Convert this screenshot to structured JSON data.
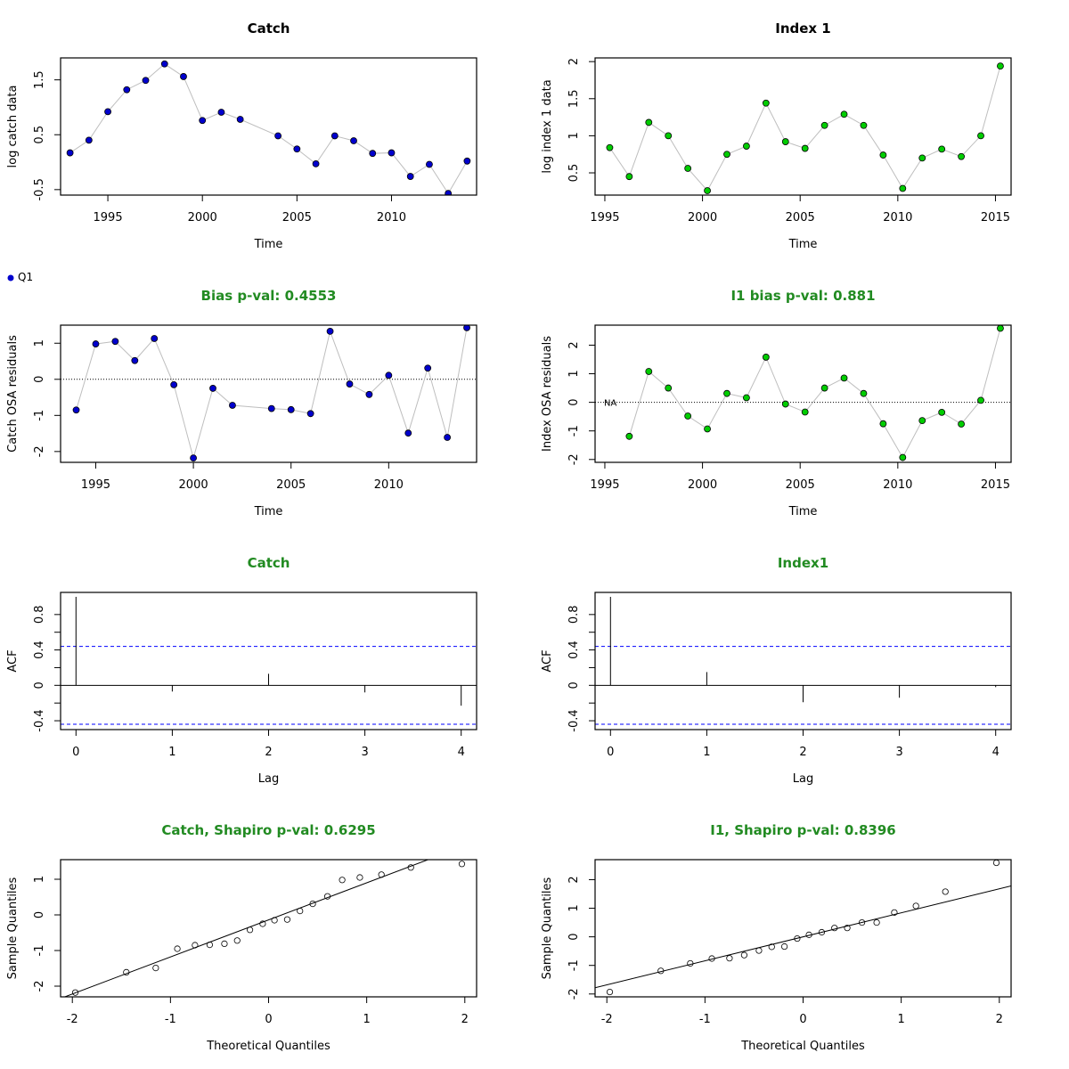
{
  "colors": {
    "title_default": "#000000",
    "title_green": "#228B22",
    "catch_point": "#0000CD",
    "index_point": "#00CD00",
    "connector_line": "#BEBEBE",
    "acf_ci": "#0000FF"
  },
  "legend": {
    "label": "Q1",
    "marker_color": "#0000CD"
  },
  "chart_data": [
    {
      "type": "line",
      "title": "Catch",
      "title_color": "#000000",
      "xlabel": "Time",
      "ylabel": "log catch data",
      "xlim": [
        1992.5,
        2014.5
      ],
      "ylim": [
        -0.6,
        1.9
      ],
      "xticks": [
        1995,
        2000,
        2005,
        2010
      ],
      "yticks": [
        -0.5,
        0.5,
        1.5
      ],
      "point_color": "#0000CD",
      "connect": true,
      "x": [
        1993,
        1994,
        1995,
        1996,
        1997,
        1998,
        1999,
        2000,
        2001,
        2002,
        2004,
        2005,
        2006,
        2007,
        2008,
        2009,
        2010,
        2011,
        2012,
        2013,
        2014
      ],
      "y": [
        0.17,
        0.4,
        0.92,
        1.32,
        1.49,
        1.79,
        1.56,
        0.76,
        0.91,
        0.78,
        0.48,
        0.24,
        -0.03,
        0.48,
        0.39,
        0.16,
        0.17,
        -0.26,
        -0.04,
        -0.57,
        0.02
      ]
    },
    {
      "type": "line",
      "title": "Index 1",
      "title_color": "#000000",
      "xlabel": "Time",
      "ylabel": "log index 1 data",
      "xlim": [
        1994.5,
        2015.8
      ],
      "ylim": [
        0.2,
        2.05
      ],
      "xticks": [
        1995,
        2000,
        2005,
        2010,
        2015
      ],
      "yticks": [
        0.5,
        1.0,
        1.5,
        2.0
      ],
      "point_color": "#00CD00",
      "connect": true,
      "x": [
        1995.25,
        1996.25,
        1997.25,
        1998.25,
        1999.25,
        2000.25,
        2001.25,
        2002.25,
        2003.25,
        2004.25,
        2005.25,
        2006.25,
        2007.25,
        2008.25,
        2009.25,
        2010.25,
        2011.25,
        2012.25,
        2013.25,
        2014.25,
        2015.25
      ],
      "y": [
        0.84,
        0.45,
        1.18,
        1.0,
        0.56,
        0.26,
        0.75,
        0.86,
        1.44,
        0.92,
        0.83,
        1.14,
        1.29,
        1.14,
        0.74,
        0.29,
        0.7,
        0.82,
        0.72,
        1.0,
        1.94
      ]
    },
    {
      "type": "line",
      "title": "Bias p-val: 0.4553",
      "title_color": "#228B22",
      "xlabel": "Time",
      "ylabel": "Catch OSA residuals",
      "xlim": [
        1993.2,
        2014.5
      ],
      "ylim": [
        -2.3,
        1.5
      ],
      "xticks": [
        1995,
        2000,
        2005,
        2010
      ],
      "yticks": [
        -2,
        -1,
        0,
        1
      ],
      "point_color": "#0000CD",
      "connect": true,
      "zero_line": true,
      "x": [
        1994,
        1995,
        1996,
        1997,
        1998,
        1999,
        2000,
        2001,
        2002,
        2004,
        2005,
        2006,
        2007,
        2008,
        2009,
        2010,
        2011,
        2012,
        2013,
        2014
      ],
      "y": [
        -0.85,
        0.98,
        1.05,
        0.52,
        1.13,
        -0.15,
        -2.18,
        -0.25,
        -0.72,
        -0.81,
        -0.84,
        -0.95,
        1.33,
        -0.13,
        -0.42,
        0.11,
        -1.49,
        0.31,
        -1.61,
        1.43
      ]
    },
    {
      "type": "line",
      "title": "I1 bias p-val: 0.881",
      "title_color": "#228B22",
      "xlabel": "Time",
      "ylabel": "Index OSA residuals",
      "xlim": [
        1994.5,
        2015.8
      ],
      "ylim": [
        -2.1,
        2.7
      ],
      "xticks": [
        1995,
        2000,
        2005,
        2010,
        2015
      ],
      "yticks": [
        -2,
        -1,
        0,
        1,
        2
      ],
      "point_color": "#00CD00",
      "connect": true,
      "zero_line": true,
      "na_label": "NA",
      "x": [
        1996.25,
        1997.25,
        1998.25,
        1999.25,
        2000.25,
        2001.25,
        2002.25,
        2003.25,
        2004.25,
        2005.25,
        2006.25,
        2007.25,
        2008.25,
        2009.25,
        2010.25,
        2011.25,
        2012.25,
        2013.25,
        2014.25,
        2015.25
      ],
      "y": [
        -1.19,
        1.08,
        0.5,
        -0.48,
        -0.93,
        0.31,
        0.16,
        1.58,
        -0.06,
        -0.34,
        0.5,
        0.85,
        0.31,
        -0.75,
        -1.93,
        -0.64,
        -0.35,
        -0.76,
        0.07,
        2.59
      ]
    },
    {
      "type": "bar",
      "title": "Catch",
      "title_color": "#228B22",
      "xlabel": "Lag",
      "ylabel": "ACF",
      "xlim": [
        -0.16,
        4.16
      ],
      "ylim": [
        -0.5,
        1.05
      ],
      "xticks": [
        0,
        1,
        2,
        3,
        4
      ],
      "yticks": [
        -0.4,
        0.0,
        0.4,
        0.8
      ],
      "y_minor_ticks": [
        -0.2,
        0.2,
        0.6
      ],
      "ci": [
        0.44,
        -0.44
      ],
      "lags": [
        0,
        1,
        2,
        3,
        4
      ],
      "acf": [
        1.0,
        -0.07,
        0.13,
        -0.08,
        -0.23
      ]
    },
    {
      "type": "bar",
      "title": "Index1",
      "title_color": "#228B22",
      "xlabel": "Lag",
      "ylabel": "ACF",
      "xlim": [
        -0.16,
        4.16
      ],
      "ylim": [
        -0.5,
        1.05
      ],
      "xticks": [
        0,
        1,
        2,
        3,
        4
      ],
      "yticks": [
        -0.4,
        0.0,
        0.4,
        0.8
      ],
      "y_minor_ticks": [
        -0.2,
        0.2,
        0.6
      ],
      "ci": [
        0.44,
        -0.44
      ],
      "lags": [
        0,
        1,
        2,
        3,
        4
      ],
      "acf": [
        1.0,
        0.15,
        -0.19,
        -0.14,
        -0.02
      ]
    },
    {
      "type": "scatter",
      "title": "Catch, Shapiro p-val: 0.6295",
      "title_color": "#228B22",
      "xlabel": "Theoretical Quantiles",
      "ylabel": "Sample Quantiles",
      "xlim": [
        -2.12,
        2.12
      ],
      "ylim": [
        -2.3,
        1.55
      ],
      "xticks": [
        -2,
        -1,
        0,
        1,
        2
      ],
      "yticks": [
        -2,
        -1,
        0,
        1
      ],
      "x": [
        -1.97,
        -1.45,
        -1.15,
        -0.93,
        -0.75,
        -0.6,
        -0.45,
        -0.32,
        -0.19,
        -0.06,
        0.06,
        0.19,
        0.32,
        0.45,
        0.6,
        0.75,
        0.93,
        1.15,
        1.45,
        1.97
      ],
      "y": [
        -2.18,
        -1.61,
        -1.49,
        -0.95,
        -0.85,
        -0.84,
        -0.81,
        -0.72,
        -0.42,
        -0.25,
        -0.15,
        -0.13,
        0.11,
        0.31,
        0.52,
        0.98,
        1.05,
        1.13,
        1.33,
        1.43
      ],
      "qq_line": {
        "intercept": -0.14,
        "slope": 1.04
      }
    },
    {
      "type": "scatter",
      "title": "I1, Shapiro p-val: 0.8396",
      "title_color": "#228B22",
      "xlabel": "Theoretical Quantiles",
      "ylabel": "Sample Quantiles",
      "xlim": [
        -2.12,
        2.12
      ],
      "ylim": [
        -2.1,
        2.7
      ],
      "xticks": [
        -2,
        -1,
        0,
        1,
        2
      ],
      "yticks": [
        -2,
        -1,
        0,
        1,
        2
      ],
      "x": [
        -1.97,
        -1.45,
        -1.15,
        -0.93,
        -0.75,
        -0.6,
        -0.45,
        -0.32,
        -0.19,
        -0.06,
        0.06,
        0.19,
        0.32,
        0.45,
        0.6,
        0.75,
        0.93,
        1.15,
        1.45,
        1.97
      ],
      "y": [
        -1.93,
        -1.19,
        -0.93,
        -0.76,
        -0.75,
        -0.64,
        -0.48,
        -0.35,
        -0.34,
        -0.06,
        0.07,
        0.16,
        0.31,
        0.31,
        0.5,
        0.5,
        0.85,
        1.08,
        1.58,
        2.59
      ],
      "qq_line": {
        "intercept": 0.0,
        "slope": 0.84
      }
    }
  ]
}
